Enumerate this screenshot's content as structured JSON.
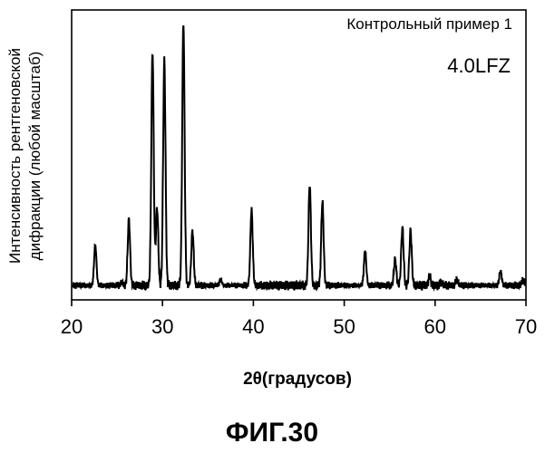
{
  "chart_data": {
    "type": "line",
    "title": "",
    "xlabel": "2θ(градусов)",
    "ylabel_lines": [
      "Интенсивность рентгеновской",
      "дифракции (любой масштаб)"
    ],
    "xlim": [
      20,
      70
    ],
    "ylim": [
      0,
      100
    ],
    "x_ticks": [
      20,
      30,
      40,
      50,
      60,
      70
    ],
    "grid": false,
    "legend": "none",
    "annotations": [
      "Контрольный пример 1",
      "4.0LFZ"
    ],
    "figure_caption": "ФИГ.30",
    "line_color": "#000000",
    "baseline": 5,
    "peaks": [
      {
        "x": 22.6,
        "y": 19
      },
      {
        "x": 25.5,
        "y": 6
      },
      {
        "x": 26.3,
        "y": 28
      },
      {
        "x": 28.9,
        "y": 86
      },
      {
        "x": 29.4,
        "y": 32
      },
      {
        "x": 30.2,
        "y": 83
      },
      {
        "x": 32.3,
        "y": 96
      },
      {
        "x": 33.3,
        "y": 24
      },
      {
        "x": 36.4,
        "y": 7
      },
      {
        "x": 39.8,
        "y": 31
      },
      {
        "x": 46.2,
        "y": 40
      },
      {
        "x": 47.6,
        "y": 34
      },
      {
        "x": 52.3,
        "y": 17
      },
      {
        "x": 55.6,
        "y": 14
      },
      {
        "x": 56.4,
        "y": 25
      },
      {
        "x": 57.3,
        "y": 24
      },
      {
        "x": 59.4,
        "y": 8
      },
      {
        "x": 60.7,
        "y": 6
      },
      {
        "x": 62.4,
        "y": 7
      },
      {
        "x": 67.2,
        "y": 10
      },
      {
        "x": 69.7,
        "y": 7
      }
    ]
  }
}
